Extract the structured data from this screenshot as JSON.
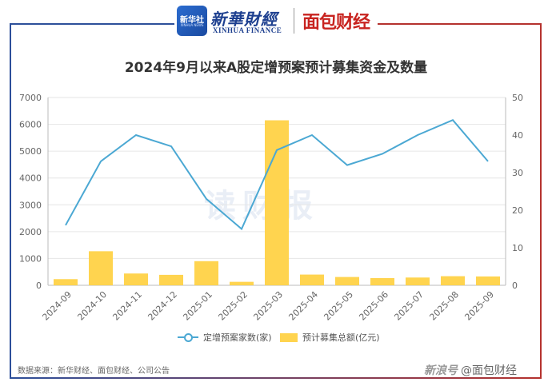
{
  "header": {
    "logo_box_text": "新华社",
    "logo_box_sub": "XINHUA NEWS",
    "brand_cn": "新華財經",
    "brand_en": "XINHUA FINANCE",
    "brand_right": "面包财经"
  },
  "colors": {
    "line": "#4ba8d3",
    "bar": "#ffd44f",
    "frame_left": "#2d4f9a",
    "frame_right": "#b5322e"
  },
  "center_watermark": "读财报",
  "chart_data": {
    "type": "bar+line",
    "title": "2024年9月以来A股定增预案预计募集资金及数量",
    "categories": [
      "2024-09",
      "2024-10",
      "2024-11",
      "2024-12",
      "2025-01",
      "2025-02",
      "2025-03",
      "2025-04",
      "2025-05",
      "2025-06",
      "2025-07",
      "2025-08",
      "2025-09"
    ],
    "series": [
      {
        "name": "定增预案家数(家)",
        "kind": "line",
        "axis": "right",
        "values": [
          16,
          33,
          40,
          37,
          23,
          15,
          36,
          40,
          32,
          35,
          40,
          44,
          33
        ]
      },
      {
        "name": "预计募集总额(亿元)",
        "kind": "bar",
        "axis": "left",
        "values": [
          230,
          1270,
          440,
          390,
          900,
          130,
          6150,
          400,
          310,
          270,
          290,
          340,
          330
        ]
      }
    ],
    "y_left": {
      "min": 0,
      "max": 7000,
      "ticks": [
        0,
        1000,
        2000,
        3000,
        4000,
        5000,
        6000,
        7000
      ]
    },
    "y_right": {
      "min": 0,
      "max": 50,
      "ticks": [
        0,
        10,
        20,
        30,
        40,
        50
      ]
    },
    "grid": true,
    "legend_position": "bottom"
  },
  "footer": {
    "source": "数据来源：新华财经、面包财经、公司公告",
    "watermark_a": "新浪号",
    "watermark_b": "@面包财经"
  }
}
